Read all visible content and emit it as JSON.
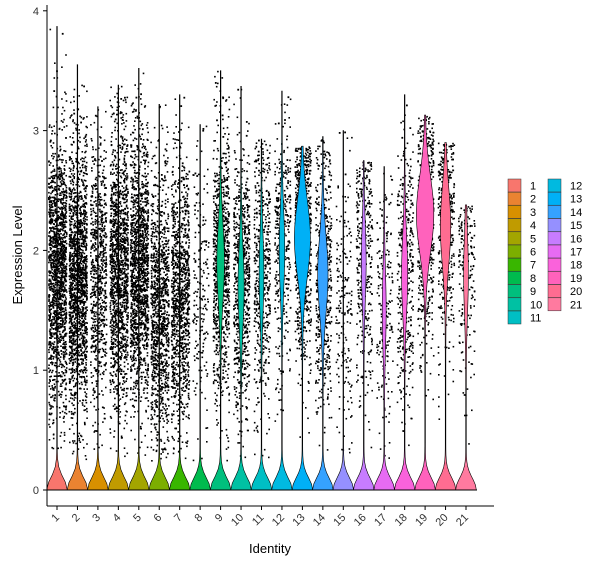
{
  "chart_data": {
    "type": "violin",
    "title": "",
    "xlabel": "Identity",
    "ylabel": "Expression Level",
    "ylim": [
      0,
      4
    ],
    "y_ticks": [
      0,
      1,
      2,
      3,
      4
    ],
    "categories": [
      "1",
      "2",
      "3",
      "4",
      "5",
      "6",
      "7",
      "8",
      "9",
      "10",
      "11",
      "12",
      "13",
      "14",
      "15",
      "16",
      "17",
      "18",
      "19",
      "20",
      "21"
    ],
    "colors": [
      "#F8766D",
      "#EA8331",
      "#D89000",
      "#C09B00",
      "#A3A500",
      "#7CAE00",
      "#39B600",
      "#00BB4E",
      "#00BF7D",
      "#00C1A3",
      "#00BFC4",
      "#00BAE0",
      "#00B0F6",
      "#35A2FF",
      "#9590FF",
      "#C77CFF",
      "#E76BF3",
      "#FA62DB",
      "#FF62BC",
      "#FF6C91",
      "#FF7A9F"
    ],
    "legend": {
      "position": "right",
      "columns": [
        [
          "1",
          "2",
          "3",
          "4",
          "5",
          "6",
          "7",
          "8",
          "9",
          "10",
          "11"
        ],
        [
          "12",
          "13",
          "14",
          "15",
          "16",
          "17",
          "18",
          "19",
          "20",
          "21"
        ]
      ]
    },
    "series": [
      {
        "name": "1",
        "max": 3.87,
        "upper_mode": 1.8,
        "upper_halfwidth": 0.0,
        "points": 9
      },
      {
        "name": "2",
        "max": 3.55,
        "upper_mode": 1.75,
        "upper_halfwidth": 0.0,
        "points": 9
      },
      {
        "name": "3",
        "max": 3.2,
        "upper_mode": 1.8,
        "upper_halfwidth": 0.0,
        "points": 4
      },
      {
        "name": "4",
        "max": 3.38,
        "upper_mode": 1.85,
        "upper_halfwidth": 0.0,
        "points": 8
      },
      {
        "name": "5",
        "max": 3.52,
        "upper_mode": 1.85,
        "upper_halfwidth": 0.0,
        "points": 8
      },
      {
        "name": "6",
        "max": 3.22,
        "upper_mode": 1.5,
        "upper_halfwidth": 0.0,
        "points": 6
      },
      {
        "name": "7",
        "max": 3.3,
        "upper_mode": 1.6,
        "upper_halfwidth": 0.0,
        "points": 6
      },
      {
        "name": "8",
        "max": 3.05,
        "upper_mode": 1.6,
        "upper_halfwidth": 0.0,
        "points": 1
      },
      {
        "name": "9",
        "max": 3.5,
        "upper_mode": 1.9,
        "upper_halfwidth": 0.25,
        "points": 5
      },
      {
        "name": "10",
        "max": 3.37,
        "upper_mode": 1.7,
        "upper_halfwidth": 0.2,
        "points": 4
      },
      {
        "name": "11",
        "max": 2.93,
        "upper_mode": 1.8,
        "upper_halfwidth": 0.15,
        "points": 3
      },
      {
        "name": "12",
        "max": 3.33,
        "upper_mode": 2.0,
        "upper_halfwidth": 0.18,
        "points": 2
      },
      {
        "name": "13",
        "max": 2.87,
        "upper_mode": 2.1,
        "upper_halfwidth": 0.55,
        "points": 4
      },
      {
        "name": "14",
        "max": 2.95,
        "upper_mode": 1.8,
        "upper_halfwidth": 0.35,
        "points": 3
      },
      {
        "name": "15",
        "max": 3.0,
        "upper_mode": 1.5,
        "upper_halfwidth": 0.0,
        "points": 1
      },
      {
        "name": "16",
        "max": 2.75,
        "upper_mode": 1.9,
        "upper_halfwidth": 0.15,
        "points": 2
      },
      {
        "name": "17",
        "max": 2.7,
        "upper_mode": 1.5,
        "upper_halfwidth": 0.12,
        "points": 1
      },
      {
        "name": "18",
        "max": 3.3,
        "upper_mode": 1.8,
        "upper_halfwidth": 0.2,
        "points": 2
      },
      {
        "name": "19",
        "max": 3.13,
        "upper_mode": 2.3,
        "upper_halfwidth": 0.6,
        "points": 3
      },
      {
        "name": "20",
        "max": 2.9,
        "upper_mode": 2.2,
        "upper_halfwidth": 0.35,
        "points": 2
      },
      {
        "name": "21",
        "max": 2.38,
        "upper_mode": 1.8,
        "upper_halfwidth": 0.15,
        "points": 1
      }
    ]
  }
}
